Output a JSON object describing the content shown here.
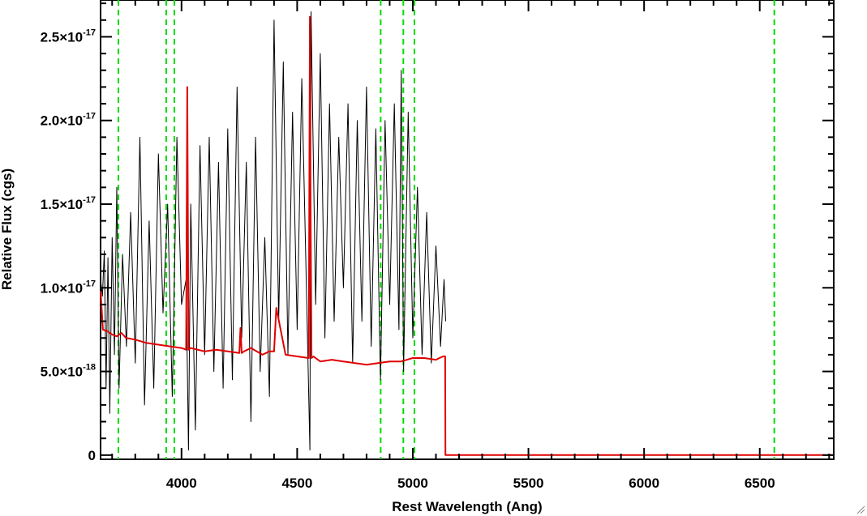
{
  "chart_data": {
    "type": "line",
    "title": "",
    "xlabel": "Rest Wavelength (Ang)",
    "ylabel": "Relative Flux (cgs)",
    "xlim": [
      3650,
      6820
    ],
    "ylim": [
      -2.5e-19,
      2.72e-17
    ],
    "x_ticks": [
      {
        "value": 4000,
        "label": "4000"
      },
      {
        "value": 4500,
        "label": "4500"
      },
      {
        "value": 5000,
        "label": "5000"
      },
      {
        "value": 5500,
        "label": "5500"
      },
      {
        "value": 6000,
        "label": "6000"
      },
      {
        "value": 6500,
        "label": "6500"
      }
    ],
    "y_ticks": [
      {
        "value": 0,
        "mantissa": "0",
        "exponent": ""
      },
      {
        "value": 5e-18,
        "mantissa": "5.0×10",
        "exponent": "-18"
      },
      {
        "value": 1e-17,
        "mantissa": "1.0×10",
        "exponent": "-17"
      },
      {
        "value": 1.5e-17,
        "mantissa": "1.5×10",
        "exponent": "-17"
      },
      {
        "value": 2e-17,
        "mantissa": "2.0×10",
        "exponent": "-17"
      },
      {
        "value": 2.5e-17,
        "mantissa": "2.5×10",
        "exponent": "-17"
      }
    ],
    "colors": {
      "spectrum": "#000000",
      "model": "#e00000",
      "lines": "#00dd00",
      "axis": "#000000"
    },
    "reference_lines": {
      "style": "dashed",
      "x": [
        3727,
        3934,
        3969,
        4861,
        4959,
        5007,
        6563
      ]
    },
    "series": [
      {
        "role": "spectrum",
        "x": [
          3650,
          3658,
          3666,
          3674,
          3682,
          3690,
          3700,
          3710,
          3720,
          3730,
          3745,
          3762,
          3780,
          3800,
          3820,
          3840,
          3860,
          3880,
          3900,
          3920,
          3940,
          3960,
          3980,
          4000,
          4020,
          4030,
          4040,
          4060,
          4080,
          4100,
          4120,
          4140,
          4160,
          4180,
          4200,
          4220,
          4240,
          4260,
          4280,
          4300,
          4320,
          4340,
          4360,
          4380,
          4400,
          4420,
          4440,
          4460,
          4480,
          4500,
          4520,
          4540,
          4555,
          4560,
          4580,
          4600,
          4620,
          4640,
          4660,
          4680,
          4700,
          4720,
          4740,
          4760,
          4780,
          4800,
          4820,
          4840,
          4860,
          4880,
          4900,
          4920,
          4940,
          4950,
          4960,
          4980,
          5000,
          5020,
          5040,
          5060,
          5080,
          5100,
          5120,
          5135,
          5142
        ],
        "y": [
          1.05e-17,
          9.5e-18,
          1.22e-17,
          4e-18,
          1.18e-17,
          2.5e-18,
          1.3e-17,
          6e-18,
          1.6e-17,
          4e-18,
          1.2e-17,
          6.5e-18,
          1.45e-17,
          5.5e-18,
          1.9e-17,
          3e-18,
          1.4e-17,
          4e-18,
          1.8e-17,
          8.5e-18,
          1.5e-17,
          3.5e-18,
          1.9e-17,
          9e-18,
          1.05e-17,
          3e-19,
          1.5e-17,
          1.5e-18,
          1.85e-17,
          6e-18,
          1.9e-17,
          5e-18,
          1.75e-17,
          4e-18,
          1.95e-17,
          4.5e-18,
          2.2e-17,
          7e-18,
          1.75e-17,
          2e-18,
          1.9e-17,
          5e-18,
          1.3e-17,
          3.5e-18,
          2.6e-17,
          8e-18,
          2.35e-17,
          6e-18,
          2.05e-17,
          7.5e-18,
          2.25e-17,
          1e-17,
          3e-19,
          2.65e-17,
          9e-18,
          2.4e-17,
          7e-18,
          2.1e-17,
          8e-18,
          1.9e-17,
          1e-17,
          2.1e-17,
          5.5e-18,
          2e-17,
          8e-18,
          2.2e-17,
          6.5e-18,
          1.95e-17,
          4.5e-18,
          2e-17,
          9e-18,
          2.1e-17,
          7.5e-18,
          2.3e-17,
          5e-18,
          2.05e-17,
          7e-18,
          1.6e-17,
          6e-18,
          1.45e-17,
          5.5e-18,
          1.25e-17,
          6.5e-18,
          1.05e-17,
          8e-18
        ]
      },
      {
        "role": "model",
        "x": [
          3650,
          3660,
          3680,
          3700,
          3720,
          3740,
          3760,
          3800,
          3850,
          3900,
          3950,
          4000,
          4020,
          4025,
          4030,
          4040,
          4100,
          4150,
          4200,
          4250,
          4255,
          4260,
          4270,
          4300,
          4350,
          4380,
          4400,
          4410,
          4450,
          4500,
          4550,
          4555,
          4558,
          4562,
          4570,
          4600,
          4650,
          4700,
          4750,
          4800,
          4850,
          4900,
          4950,
          5000,
          5050,
          5100,
          5130,
          5140,
          5141,
          5200,
          5600,
          6000,
          6400,
          6820
        ],
        "y": [
          9.8e-18,
          7.5e-18,
          7.4e-18,
          7.2e-18,
          7.1e-18,
          7.3e-18,
          7e-18,
          6.9e-18,
          6.7e-18,
          6.6e-18,
          6.5e-18,
          6.4e-18,
          6.3e-18,
          2.2e-17,
          6.3e-18,
          6.4e-18,
          6.2e-18,
          6.3e-18,
          6.2e-18,
          6.1e-18,
          7.6e-18,
          6.1e-18,
          6.2e-18,
          6.4e-18,
          6e-18,
          6.2e-18,
          6.2e-18,
          8.8e-18,
          6e-18,
          5.9e-18,
          5.8e-18,
          2.62e-17,
          1.5e-17,
          5.8e-18,
          5.9e-18,
          5.6e-18,
          5.7e-18,
          5.6e-18,
          5.5e-18,
          5.4e-18,
          5.5e-18,
          5.6e-18,
          5.6e-18,
          5.8e-18,
          5.8e-18,
          5.7e-18,
          5.9e-18,
          5.9e-18,
          0,
          0,
          0,
          0,
          0,
          0
        ]
      }
    ]
  }
}
